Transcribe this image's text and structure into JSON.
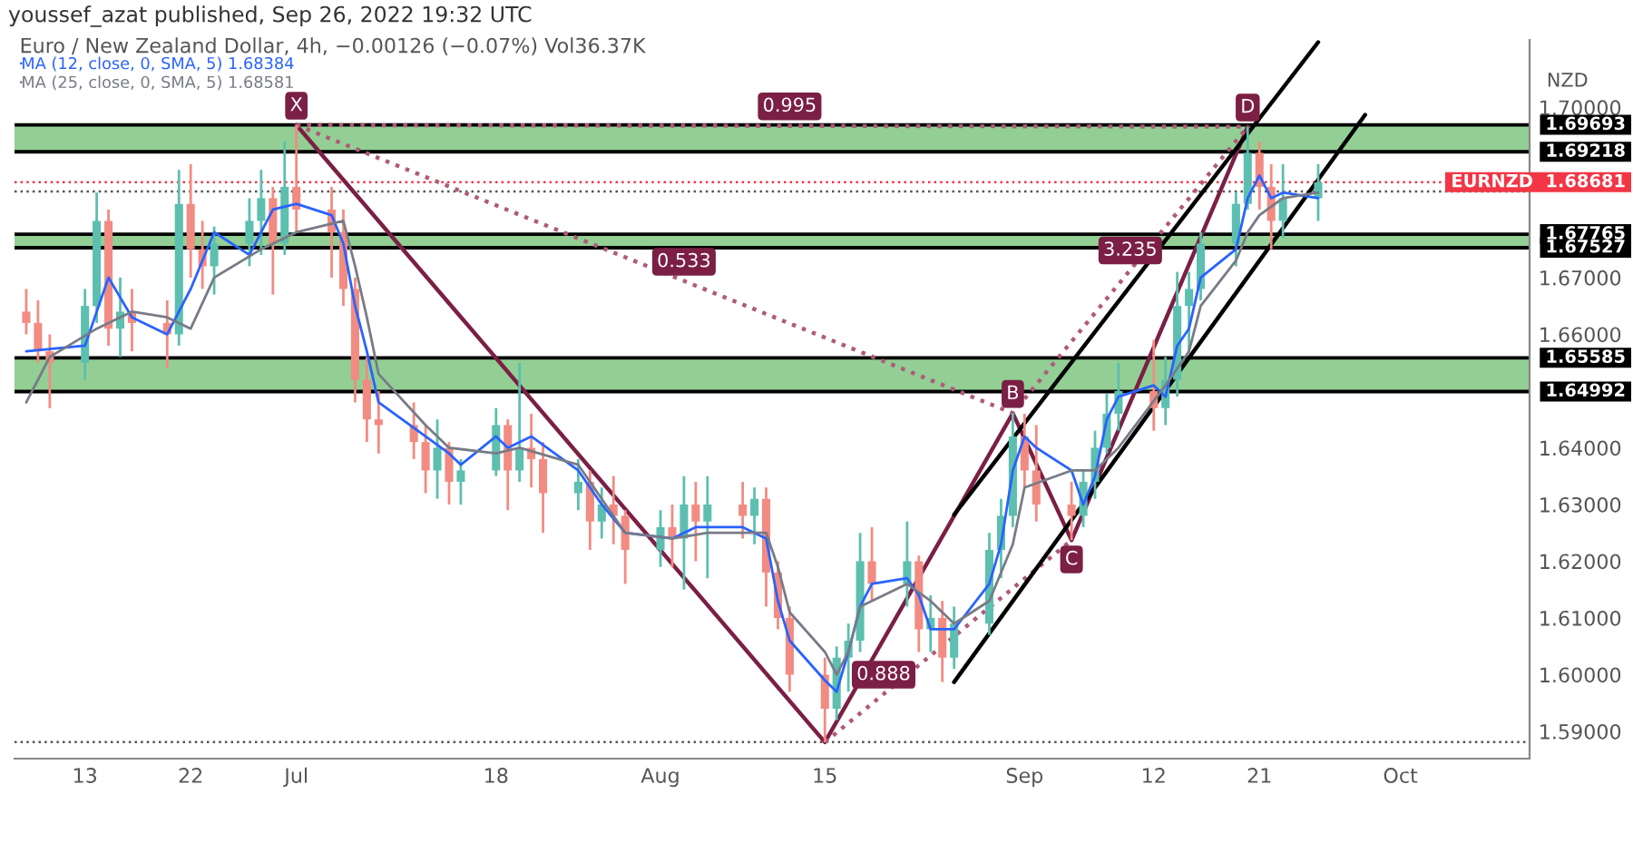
{
  "chart_data": {
    "type": "candlestick",
    "title": "youssef_azat published, Sep 26, 2022 19:32 UTC",
    "subtitle": "Euro / New Zealand Dollar, 4h, −0.00126 (−0.07%) Vol36.37K",
    "ylabel": "NZD",
    "x": [
      "2022-06-08",
      "2022-06-09",
      "2022-06-10",
      "2022-06-13",
      "2022-06-14",
      "2022-06-15",
      "2022-06-16",
      "2022-06-17",
      "2022-06-20",
      "2022-06-21",
      "2022-06-22",
      "2022-06-23",
      "2022-06-24",
      "2022-06-27",
      "2022-06-28",
      "2022-06-29",
      "2022-06-30",
      "2022-07-01",
      "2022-07-04",
      "2022-07-05",
      "2022-07-06",
      "2022-07-07",
      "2022-07-08",
      "2022-07-11",
      "2022-07-12",
      "2022-07-13",
      "2022-07-14",
      "2022-07-15",
      "2022-07-18",
      "2022-07-19",
      "2022-07-20",
      "2022-07-21",
      "2022-07-22",
      "2022-07-25",
      "2022-07-26",
      "2022-07-27",
      "2022-07-28",
      "2022-07-29",
      "2022-08-01",
      "2022-08-02",
      "2022-08-03",
      "2022-08-04",
      "2022-08-05",
      "2022-08-08",
      "2022-08-09",
      "2022-08-10",
      "2022-08-11",
      "2022-08-12",
      "2022-08-15",
      "2022-08-16",
      "2022-08-17",
      "2022-08-18",
      "2022-08-19",
      "2022-08-22",
      "2022-08-23",
      "2022-08-24",
      "2022-08-25",
      "2022-08-26",
      "2022-08-29",
      "2022-08-30",
      "2022-08-31",
      "2022-09-01",
      "2022-09-02",
      "2022-09-05",
      "2022-09-06",
      "2022-09-07",
      "2022-09-08",
      "2022-09-09",
      "2022-09-12",
      "2022-09-13",
      "2022-09-14",
      "2022-09-15",
      "2022-09-16",
      "2022-09-19",
      "2022-09-20",
      "2022-09-21",
      "2022-09-22",
      "2022-09-23",
      "2022-09-26"
    ],
    "ohlc": [
      [
        1.664,
        1.668,
        1.66,
        1.662
      ],
      [
        1.662,
        1.666,
        1.655,
        1.657
      ],
      [
        1.657,
        1.66,
        1.647,
        1.655
      ],
      [
        1.655,
        1.668,
        1.652,
        1.665
      ],
      [
        1.665,
        1.685,
        1.662,
        1.68
      ],
      [
        1.68,
        1.682,
        1.658,
        1.661
      ],
      [
        1.661,
        1.67,
        1.656,
        1.664
      ],
      [
        1.664,
        1.668,
        1.657,
        1.662
      ],
      [
        1.662,
        1.666,
        1.654,
        1.66
      ],
      [
        1.66,
        1.689,
        1.658,
        1.683
      ],
      [
        1.683,
        1.69,
        1.67,
        1.675
      ],
      [
        1.675,
        1.68,
        1.668,
        1.672
      ],
      [
        1.672,
        1.679,
        1.667,
        1.676
      ],
      [
        1.676,
        1.684,
        1.672,
        1.68
      ],
      [
        1.68,
        1.689,
        1.674,
        1.684
      ],
      [
        1.684,
        1.686,
        1.667,
        1.676
      ],
      [
        1.676,
        1.694,
        1.674,
        1.686
      ],
      [
        1.686,
        1.6969,
        1.678,
        1.682
      ],
      [
        1.682,
        1.686,
        1.67,
        1.678
      ],
      [
        1.678,
        1.682,
        1.665,
        1.668
      ],
      [
        1.668,
        1.67,
        1.648,
        1.652
      ],
      [
        1.652,
        1.656,
        1.641,
        1.645
      ],
      [
        1.645,
        1.65,
        1.639,
        1.644
      ],
      [
        1.644,
        1.648,
        1.638,
        1.641
      ],
      [
        1.641,
        1.644,
        1.632,
        1.636
      ],
      [
        1.636,
        1.645,
        1.631,
        1.64
      ],
      [
        1.64,
        1.641,
        1.63,
        1.634
      ],
      [
        1.634,
        1.638,
        1.63,
        1.636
      ],
      [
        1.636,
        1.647,
        1.635,
        1.644
      ],
      [
        1.644,
        1.645,
        1.629,
        1.636
      ],
      [
        1.636,
        1.655,
        1.634,
        1.64
      ],
      [
        1.64,
        1.646,
        1.633,
        1.638
      ],
      [
        1.638,
        1.641,
        1.625,
        1.632
      ],
      [
        1.632,
        1.638,
        1.629,
        1.634
      ],
      [
        1.634,
        1.636,
        1.622,
        1.627
      ],
      [
        1.627,
        1.633,
        1.624,
        1.63
      ],
      [
        1.63,
        1.635,
        1.623,
        1.628
      ],
      [
        1.628,
        1.629,
        1.616,
        1.622
      ],
      [
        1.622,
        1.629,
        1.619,
        1.626
      ],
      [
        1.626,
        1.63,
        1.619,
        1.624
      ],
      [
        1.624,
        1.635,
        1.615,
        1.63
      ],
      [
        1.63,
        1.634,
        1.62,
        1.627
      ],
      [
        1.627,
        1.635,
        1.617,
        1.63
      ],
      [
        1.63,
        1.634,
        1.624,
        1.628
      ],
      [
        1.628,
        1.633,
        1.623,
        1.631
      ],
      [
        1.631,
        1.633,
        1.612,
        1.618
      ],
      [
        1.618,
        1.62,
        1.608,
        1.61
      ],
      [
        1.61,
        1.612,
        1.597,
        1.6
      ],
      [
        1.6,
        1.603,
        1.5881,
        1.594
      ],
      [
        1.594,
        1.605,
        1.592,
        1.603
      ],
      [
        1.603,
        1.609,
        1.597,
        1.606
      ],
      [
        1.606,
        1.625,
        1.604,
        1.62
      ],
      [
        1.62,
        1.626,
        1.613,
        1.616
      ],
      [
        1.616,
        1.627,
        1.612,
        1.62
      ],
      [
        1.62,
        1.621,
        1.604,
        1.608
      ],
      [
        1.608,
        1.614,
        1.604,
        1.61
      ],
      [
        1.61,
        1.613,
        1.5987,
        1.603
      ],
      [
        1.603,
        1.612,
        1.601,
        1.609
      ],
      [
        1.609,
        1.625,
        1.607,
        1.622
      ],
      [
        1.622,
        1.631,
        1.617,
        1.628
      ],
      [
        1.628,
        1.6461,
        1.626,
        1.642
      ],
      [
        1.642,
        1.646,
        1.633,
        1.636
      ],
      [
        1.636,
        1.644,
        1.627,
        1.63
      ],
      [
        1.63,
        1.634,
        1.6237,
        1.628
      ],
      [
        1.628,
        1.636,
        1.626,
        1.634
      ],
      [
        1.634,
        1.643,
        1.631,
        1.64
      ],
      [
        1.64,
        1.6495,
        1.639,
        1.646
      ],
      [
        1.646,
        1.655,
        1.643,
        1.65
      ],
      [
        1.65,
        1.659,
        1.643,
        1.647
      ],
      [
        1.647,
        1.656,
        1.644,
        1.652
      ],
      [
        1.652,
        1.671,
        1.649,
        1.665
      ],
      [
        1.665,
        1.671,
        1.657,
        1.668
      ],
      [
        1.668,
        1.678,
        1.666,
        1.676
      ],
      [
        1.676,
        1.685,
        1.672,
        1.683
      ],
      [
        1.683,
        1.6966,
        1.682,
        1.692
      ],
      [
        1.692,
        1.694,
        1.682,
        1.686
      ],
      [
        1.686,
        1.69,
        1.675,
        1.68
      ],
      [
        1.68,
        1.69,
        1.677,
        1.684
      ],
      [
        1.684,
        1.69,
        1.68,
        1.6868
      ]
    ],
    "series": [
      {
        "type": "line",
        "name": "MA (12, close, 0, SMA, 5) 1.68384",
        "color": "#2962ff",
        "line_style": "solid",
        "x": [
          "2022-06-08",
          "2022-06-13",
          "2022-06-15",
          "2022-06-17",
          "2022-06-20",
          "2022-06-22",
          "2022-06-24",
          "2022-06-27",
          "2022-06-29",
          "2022-07-01",
          "2022-07-04",
          "2022-07-05",
          "2022-07-06",
          "2022-07-07",
          "2022-07-08",
          "2022-07-12",
          "2022-07-14",
          "2022-07-15",
          "2022-07-18",
          "2022-07-19",
          "2022-07-21",
          "2022-07-25",
          "2022-07-27",
          "2022-07-29",
          "2022-08-02",
          "2022-08-04",
          "2022-08-08",
          "2022-08-10",
          "2022-08-11",
          "2022-08-12",
          "2022-08-15",
          "2022-08-16",
          "2022-08-17",
          "2022-08-18",
          "2022-08-19",
          "2022-08-22",
          "2022-08-23",
          "2022-08-24",
          "2022-08-26",
          "2022-08-29",
          "2022-08-30",
          "2022-08-31",
          "2022-09-01",
          "2022-09-02",
          "2022-09-05",
          "2022-09-06",
          "2022-09-07",
          "2022-09-08",
          "2022-09-09",
          "2022-09-12",
          "2022-09-13",
          "2022-09-14",
          "2022-09-15",
          "2022-09-16",
          "2022-09-19",
          "2022-09-20",
          "2022-09-21",
          "2022-09-22",
          "2022-09-23",
          "2022-09-26"
        ],
        "values": [
          1.657,
          1.658,
          1.67,
          1.663,
          1.66,
          1.668,
          1.678,
          1.674,
          1.682,
          1.683,
          1.681,
          1.676,
          1.665,
          1.657,
          1.648,
          1.642,
          1.639,
          1.637,
          1.642,
          1.64,
          1.642,
          1.636,
          1.63,
          1.625,
          1.624,
          1.626,
          1.626,
          1.624,
          1.613,
          1.606,
          1.599,
          1.597,
          1.604,
          1.612,
          1.616,
          1.617,
          1.614,
          1.608,
          1.608,
          1.616,
          1.623,
          1.636,
          1.642,
          1.64,
          1.636,
          1.63,
          1.635,
          1.645,
          1.649,
          1.651,
          1.649,
          1.658,
          1.661,
          1.67,
          1.675,
          1.684,
          1.688,
          1.684,
          1.685,
          1.684
        ]
      },
      {
        "type": "line",
        "name": "MA (25, close, 0, SMA, 5) 1.68581",
        "color": "#787b86",
        "line_style": "solid",
        "x": [
          "2022-06-08",
          "2022-06-10",
          "2022-06-14",
          "2022-06-17",
          "2022-06-20",
          "2022-06-22",
          "2022-06-24",
          "2022-06-28",
          "2022-07-01",
          "2022-07-05",
          "2022-07-06",
          "2022-07-07",
          "2022-07-08",
          "2022-07-12",
          "2022-07-14",
          "2022-07-18",
          "2022-07-20",
          "2022-07-25",
          "2022-07-27",
          "2022-07-29",
          "2022-08-02",
          "2022-08-05",
          "2022-08-10",
          "2022-08-11",
          "2022-08-12",
          "2022-08-15",
          "2022-08-16",
          "2022-08-17",
          "2022-08-18",
          "2022-08-22",
          "2022-08-24",
          "2022-08-26",
          "2022-08-29",
          "2022-08-31",
          "2022-09-01",
          "2022-09-05",
          "2022-09-07",
          "2022-09-09",
          "2022-09-13",
          "2022-09-15",
          "2022-09-16",
          "2022-09-19",
          "2022-09-20",
          "2022-09-21",
          "2022-09-23",
          "2022-09-26"
        ],
        "values": [
          1.648,
          1.656,
          1.661,
          1.664,
          1.663,
          1.661,
          1.67,
          1.675,
          1.678,
          1.68,
          1.672,
          1.663,
          1.653,
          1.644,
          1.64,
          1.639,
          1.64,
          1.637,
          1.631,
          1.625,
          1.624,
          1.625,
          1.625,
          1.619,
          1.611,
          1.604,
          1.6,
          1.604,
          1.612,
          1.616,
          1.613,
          1.609,
          1.613,
          1.623,
          1.633,
          1.636,
          1.636,
          1.64,
          1.651,
          1.657,
          1.665,
          1.673,
          1.678,
          1.681,
          1.684,
          1.685
        ]
      },
      {
        "type": "line",
        "color": "#7b1f45",
        "line_style": "solid",
        "x": [
          "2022-07-01",
          "2022-08-15",
          "2022-08-31",
          "2022-09-05",
          "2022-09-20"
        ],
        "values": [
          1.6969,
          1.5881,
          1.6461,
          1.6237,
          1.6966
        ]
      },
      {
        "type": "line",
        "color": "#b05a7a",
        "line_style": "dotted",
        "x": [
          "2022-07-01",
          "2022-08-31",
          "2022-09-20"
        ],
        "values": [
          1.6969,
          1.6461,
          1.6966
        ]
      },
      {
        "type": "line",
        "color": "#b05a7a",
        "line_style": "dotted",
        "x": [
          "2022-08-15",
          "2022-09-05"
        ],
        "values": [
          1.5881,
          1.6237
        ]
      },
      {
        "type": "line",
        "color": "#b05a7a",
        "line_style": "dotted",
        "x": [
          "2022-07-01",
          "2022-09-20"
        ],
        "values": [
          1.6969,
          1.6966
        ]
      },
      {
        "type": "line",
        "color": "#000000",
        "line_style": "solid",
        "x": [
          "2022-08-26",
          "2022-09-26"
        ],
        "values": [
          1.6282,
          1.7115
        ]
      },
      {
        "type": "line",
        "color": "#000000",
        "line_style": "solid",
        "x": [
          "2022-08-26",
          "2022-09-30"
        ],
        "values": [
          1.5987,
          1.6987
        ]
      }
    ],
    "bands": [
      {
        "axis": "y",
        "from": 1.69218,
        "to": 1.69693,
        "color": "#93cf95"
      },
      {
        "axis": "y",
        "from": 1.67527,
        "to": 1.67765,
        "color": "#93cf95"
      },
      {
        "axis": "y",
        "from": 1.64992,
        "to": 1.65585,
        "color": "#93cf95"
      }
    ],
    "ref_lines": [
      {
        "axis": "y",
        "value": 1.69693,
        "label": "1.69693",
        "color": "#000000",
        "line_style": "solid"
      },
      {
        "axis": "y",
        "value": 1.69218,
        "label": "1.69218",
        "color": "#000000",
        "line_style": "solid"
      },
      {
        "axis": "y",
        "value": 1.67765,
        "label": "1.67765",
        "color": "#000000",
        "line_style": "solid"
      },
      {
        "axis": "y",
        "value": 1.67527,
        "label": "1.67527",
        "color": "#000000",
        "line_style": "solid"
      },
      {
        "axis": "y",
        "value": 1.65585,
        "label": "1.65585",
        "color": "#000000",
        "line_style": "solid"
      },
      {
        "axis": "y",
        "value": 1.64992,
        "label": "1.64992",
        "color": "#000000",
        "line_style": "solid"
      },
      {
        "axis": "y",
        "value": 1.68681,
        "label": "EURNZD  1.68681",
        "color": "#f23645",
        "line_style": "dotted"
      },
      {
        "axis": "y",
        "value": 1.6852,
        "color": "#555555",
        "line_style": "dotted"
      },
      {
        "axis": "y",
        "value": 1.5881,
        "color": "#555555",
        "line_style": "dotted"
      }
    ],
    "annotations": [
      {
        "text": "X",
        "x": "2022-07-01",
        "y": 1.6969
      },
      {
        "text": "B",
        "x": "2022-08-31",
        "y": 1.6461
      },
      {
        "text": "C",
        "x": "2022-09-05",
        "y": 1.6237
      },
      {
        "text": "D",
        "x": "2022-09-20",
        "y": 1.6966
      },
      {
        "text": "0.995",
        "x": "2022-08-12",
        "y": 1.6968
      },
      {
        "text": "0.533",
        "x": "2022-08-03",
        "y": 1.6694
      },
      {
        "text": "0.888",
        "x": "2022-08-20",
        "y": 1.5966
      },
      {
        "text": "3.235",
        "x": "2022-09-10",
        "y": 1.6714
      }
    ],
    "legend": "top left",
    "xlim": [
      "2022-06-07",
      "2022-10-14"
    ],
    "xticks": [
      {
        "value": "2022-06-13",
        "label": "13"
      },
      {
        "value": "2022-06-22",
        "label": "22"
      },
      {
        "value": "2022-07-01",
        "label": "Jul"
      },
      {
        "value": "2022-07-18",
        "label": "18"
      },
      {
        "value": "2022-08-01",
        "label": "Aug"
      },
      {
        "value": "2022-08-15",
        "label": "15"
      },
      {
        "value": "2022-09-01",
        "label": "Sep"
      },
      {
        "value": "2022-09-12",
        "label": "12"
      },
      {
        "value": "2022-09-21",
        "label": "21"
      },
      {
        "value": "2022-10-03",
        "label": "Oct"
      }
    ],
    "ylim": [
      1.5852,
      1.7119
    ],
    "yticks": [
      {
        "value": 1.59,
        "label": "1.59000"
      },
      {
        "value": 1.6,
        "label": "1.60000"
      },
      {
        "value": 1.61,
        "label": "1.61000"
      },
      {
        "value": 1.62,
        "label": "1.62000"
      },
      {
        "value": 1.63,
        "label": "1.63000"
      },
      {
        "value": 1.64,
        "label": "1.64000"
      },
      {
        "value": 1.66,
        "label": "1.66000"
      },
      {
        "value": 1.67,
        "label": "1.67000"
      },
      {
        "value": 1.7,
        "label": "1.70000"
      }
    ]
  }
}
